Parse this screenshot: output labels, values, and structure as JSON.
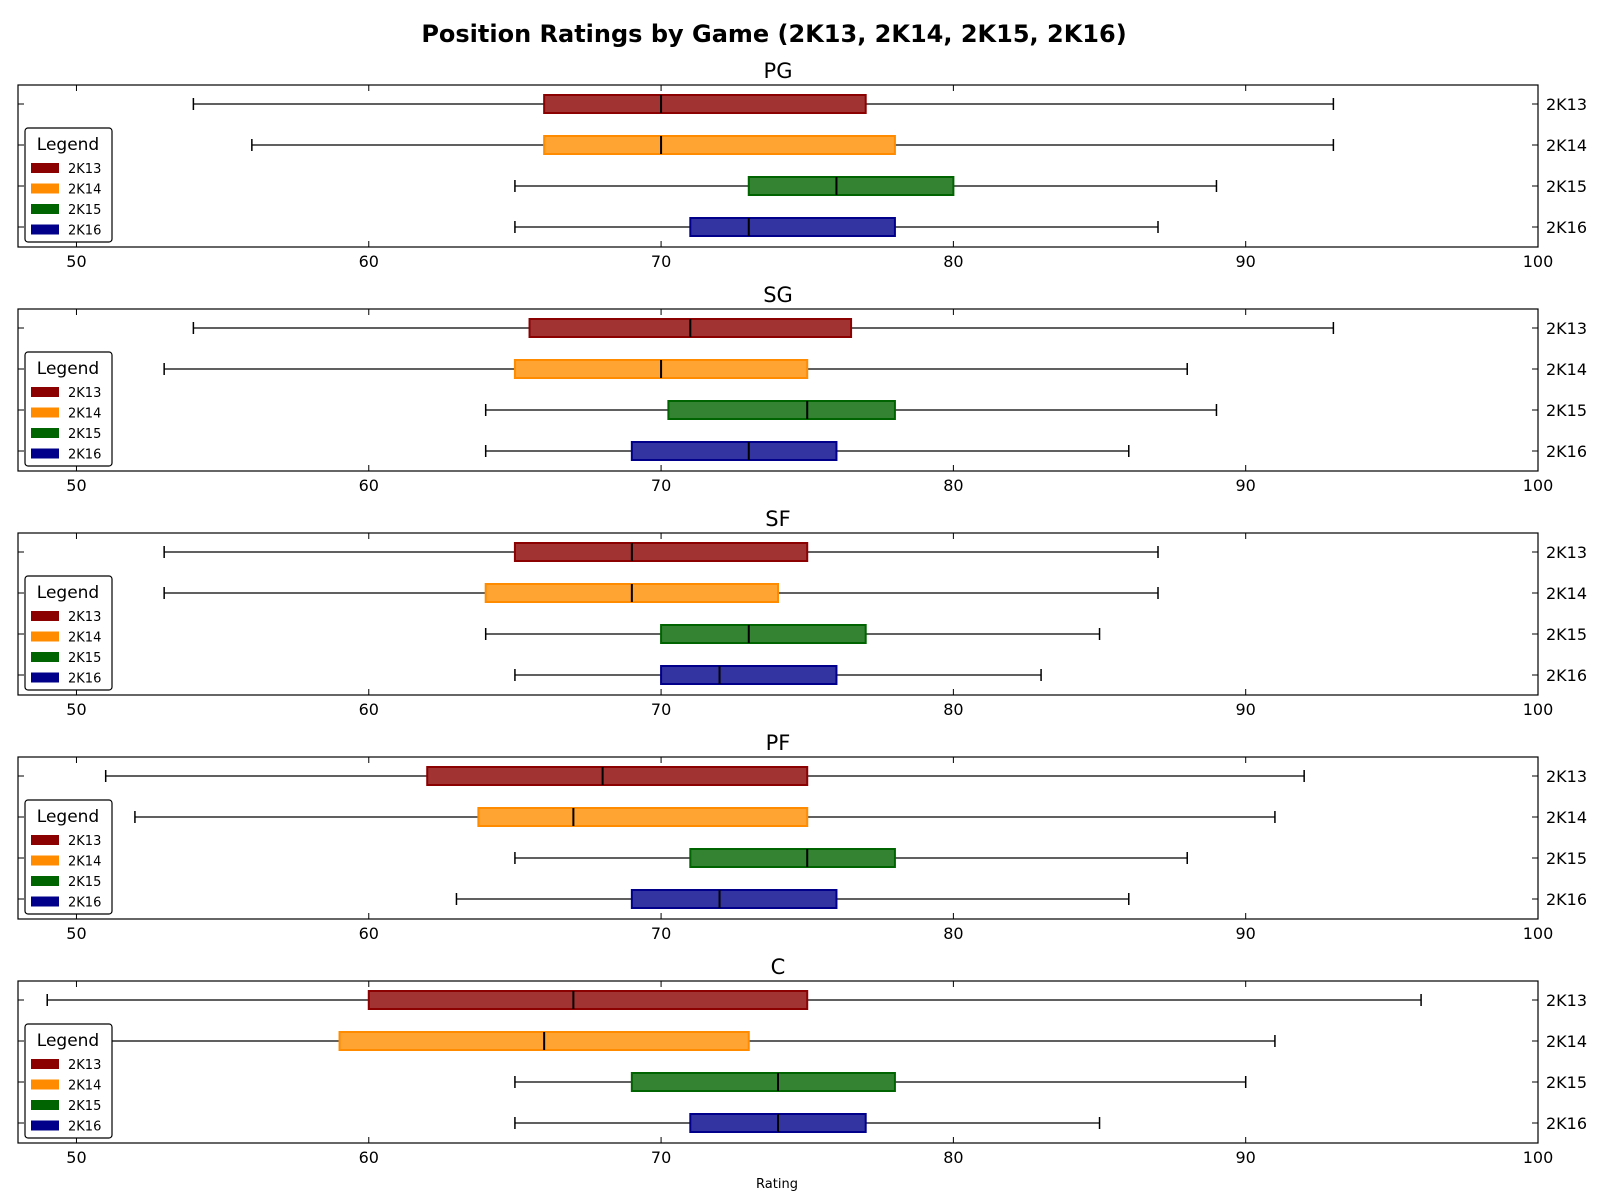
{
  "chart_data": {
    "type": "boxplot",
    "title": "Position Ratings by Game (2K13, 2K14, 2K15, 2K16)",
    "xlabel": "Rating",
    "xlim": [
      48,
      100
    ],
    "xticks": [
      50,
      60,
      70,
      80,
      90,
      100
    ],
    "games": [
      "2K13",
      "2K14",
      "2K15",
      "2K16"
    ],
    "colors": {
      "2K13": "#8b0000",
      "2K14": "#ff8c00",
      "2K15": "#006400",
      "2K16": "#00008b"
    },
    "legend": {
      "title": "Legend",
      "placement": "left",
      "entries": [
        "2K13",
        "2K14",
        "2K15",
        "2K16"
      ]
    },
    "panels": [
      {
        "title": "PG",
        "boxes": [
          {
            "game": "2K13",
            "min": 54,
            "q1": 66,
            "median": 70,
            "q3": 77,
            "max": 93
          },
          {
            "game": "2K14",
            "min": 56,
            "q1": 66,
            "median": 70,
            "q3": 78,
            "max": 93
          },
          {
            "game": "2K15",
            "min": 65,
            "q1": 73,
            "median": 76,
            "q3": 80,
            "max": 89
          },
          {
            "game": "2K16",
            "min": 65,
            "q1": 71,
            "median": 73,
            "q3": 78,
            "max": 87
          }
        ]
      },
      {
        "title": "SG",
        "boxes": [
          {
            "game": "2K13",
            "min": 54,
            "q1": 65.5,
            "median": 71,
            "q3": 76.5,
            "max": 93
          },
          {
            "game": "2K14",
            "min": 53,
            "q1": 65,
            "median": 70,
            "q3": 75,
            "max": 88
          },
          {
            "game": "2K15",
            "min": 64,
            "q1": 70.25,
            "median": 75,
            "q3": 78,
            "max": 89
          },
          {
            "game": "2K16",
            "min": 64,
            "q1": 69,
            "median": 73,
            "q3": 76,
            "max": 86
          }
        ]
      },
      {
        "title": "SF",
        "boxes": [
          {
            "game": "2K13",
            "min": 53,
            "q1": 65,
            "median": 69,
            "q3": 75,
            "max": 87
          },
          {
            "game": "2K14",
            "min": 53,
            "q1": 64,
            "median": 69,
            "q3": 74,
            "max": 87
          },
          {
            "game": "2K15",
            "min": 64,
            "q1": 70,
            "median": 73,
            "q3": 77,
            "max": 85
          },
          {
            "game": "2K16",
            "min": 65,
            "q1": 70,
            "median": 72,
            "q3": 76,
            "max": 83
          }
        ]
      },
      {
        "title": "PF",
        "boxes": [
          {
            "game": "2K13",
            "min": 51,
            "q1": 62,
            "median": 68,
            "q3": 75,
            "max": 92
          },
          {
            "game": "2K14",
            "min": 52,
            "q1": 63.75,
            "median": 67,
            "q3": 75,
            "max": 91
          },
          {
            "game": "2K15",
            "min": 65,
            "q1": 71,
            "median": 75,
            "q3": 78,
            "max": 88
          },
          {
            "game": "2K16",
            "min": 63,
            "q1": 69,
            "median": 72,
            "q3": 76,
            "max": 86
          }
        ]
      },
      {
        "title": "C",
        "boxes": [
          {
            "game": "2K13",
            "min": 49,
            "q1": 60,
            "median": 67,
            "q3": 75,
            "max": 96
          },
          {
            "game": "2K14",
            "min": 50,
            "q1": 59,
            "median": 66,
            "q3": 73,
            "max": 91
          },
          {
            "game": "2K15",
            "min": 65,
            "q1": 69,
            "median": 74,
            "q3": 78,
            "max": 90
          },
          {
            "game": "2K16",
            "min": 65,
            "q1": 71,
            "median": 74,
            "q3": 77,
            "max": 85
          }
        ]
      }
    ]
  }
}
